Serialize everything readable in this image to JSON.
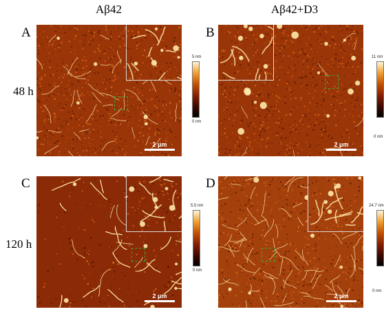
{
  "columns": {
    "left": "Aβ42",
    "right": "Aβ42+D3"
  },
  "rows": {
    "top": "48 h",
    "bottom": "120 h"
  },
  "panels": {
    "A": {
      "label": "A",
      "scale": "2 μm",
      "cbar_max": "5 nm",
      "cbar_min": "0 nm"
    },
    "B": {
      "label": "B",
      "scale": "2 μm",
      "cbar_max": "11 nm",
      "cbar_min": "0 nm"
    },
    "C": {
      "label": "C",
      "scale": "2 μm",
      "cbar_max": "5.5 nm",
      "cbar_min": "0 nm"
    },
    "D": {
      "label": "D",
      "scale": "2 μm",
      "cbar_max": "24.7 nm",
      "cbar_min": "0 nm"
    }
  },
  "colors": {
    "afm_dark": "#5a1a00",
    "afm_mid": "#9a3508",
    "afm_bright": "#ffe9a8",
    "zoom_box": "#2fae3a"
  }
}
